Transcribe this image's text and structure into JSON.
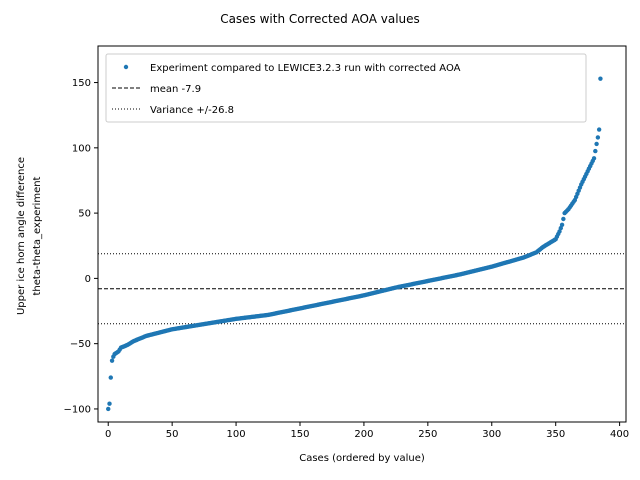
{
  "chart_data": {
    "type": "scatter",
    "title": "Cases with Corrected AOA values",
    "xlabel": "Cases (ordered by value)",
    "ylabel_line1": "Upper ice horn angle difference",
    "ylabel_line2": "theta-theta_experiment",
    "xlim": [
      -8,
      405
    ],
    "ylim": [
      -110,
      178
    ],
    "xticks": [
      0,
      50,
      100,
      150,
      200,
      250,
      300,
      350,
      400
    ],
    "yticks": [
      -100,
      -50,
      0,
      50,
      100,
      150
    ],
    "grid": false,
    "legend_position": "top-left",
    "n_points": 386,
    "series": [
      {
        "name": "Experiment compared to LEWICE3.2.3 run with corrected AOA",
        "style": "points",
        "color": "#1f77b4",
        "anchors": [
          [
            0,
            -100
          ],
          [
            1,
            -96
          ],
          [
            2,
            -76
          ],
          [
            3,
            -63
          ],
          [
            4,
            -60
          ],
          [
            5,
            -58
          ],
          [
            8,
            -56
          ],
          [
            10,
            -53
          ],
          [
            15,
            -51
          ],
          [
            20,
            -48
          ],
          [
            30,
            -44
          ],
          [
            50,
            -39
          ],
          [
            75,
            -35
          ],
          [
            100,
            -31
          ],
          [
            125,
            -28
          ],
          [
            150,
            -23
          ],
          [
            175,
            -18
          ],
          [
            200,
            -13
          ],
          [
            225,
            -7
          ],
          [
            250,
            -2
          ],
          [
            275,
            3
          ],
          [
            300,
            9
          ],
          [
            325,
            16
          ],
          [
            335,
            20
          ],
          [
            340,
            24
          ],
          [
            345,
            27
          ],
          [
            350,
            30
          ],
          [
            353,
            36
          ],
          [
            355,
            41
          ],
          [
            357,
            50
          ],
          [
            360,
            53
          ],
          [
            365,
            60
          ],
          [
            370,
            72
          ],
          [
            375,
            82
          ],
          [
            380,
            92
          ],
          [
            382,
            103
          ],
          [
            383,
            108
          ],
          [
            384,
            114
          ],
          [
            385,
            153
          ],
          [
            386,
            164
          ]
        ]
      },
      {
        "name": "mean -7.9",
        "style": "dashed",
        "color": "#000000",
        "y": -7.9
      },
      {
        "name": "Variance +/-26.8",
        "style": "dotted",
        "color": "#000000",
        "y_values": [
          -34.7,
          18.9
        ]
      }
    ]
  }
}
